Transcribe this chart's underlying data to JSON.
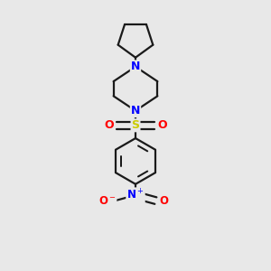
{
  "background_color": "#e8e8e8",
  "bond_color": "#1a1a1a",
  "N_color": "#0000ff",
  "S_color": "#cccc00",
  "O_color": "#ff0000",
  "line_width": 1.6,
  "figsize": [
    3.0,
    3.0
  ],
  "dpi": 100,
  "xlim": [
    -0.75,
    0.75
  ],
  "ylim": [
    -1.45,
    1.45
  ]
}
